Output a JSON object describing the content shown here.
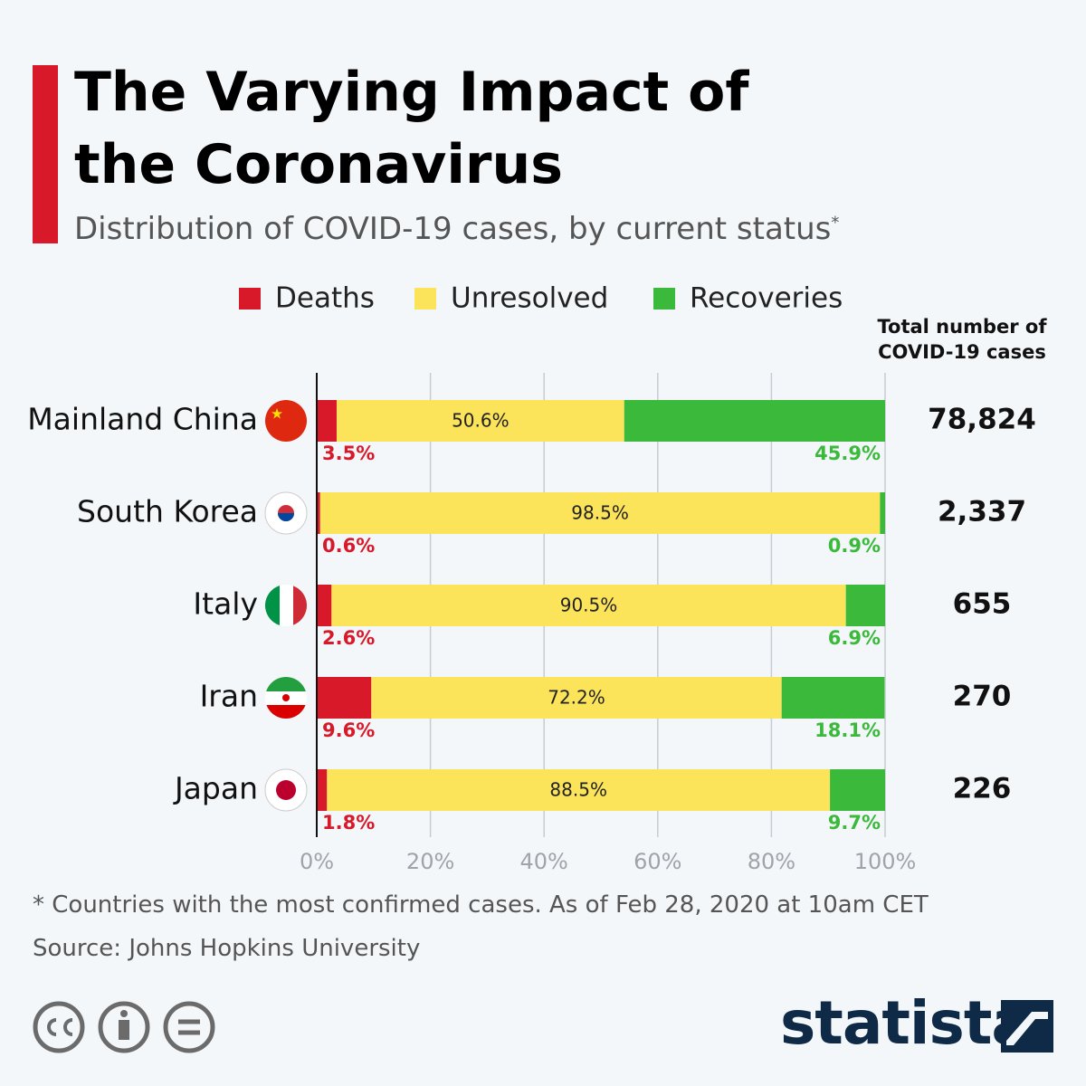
{
  "chart_data": {
    "type": "stacked_bar_horizontal",
    "title": "The Varying Impact of the Coronavirus",
    "subtitle": "Distribution of COVID-19 cases, by current status",
    "subtitle_mark": "*",
    "categories": [
      "Mainland China",
      "South Korea",
      "Italy",
      "Iran",
      "Japan"
    ],
    "series": [
      {
        "name": "Deaths",
        "color": "#d7192a",
        "values": [
          3.5,
          0.6,
          2.6,
          9.6,
          1.8
        ],
        "value_labels": [
          "3.5%",
          "0.6%",
          "2.6%",
          "9.6%",
          "1.8%"
        ]
      },
      {
        "name": "Unresolved",
        "color": "#fbe35a",
        "values": [
          50.6,
          98.5,
          90.5,
          72.2,
          88.5
        ],
        "value_labels": [
          "50.6%",
          "98.5%",
          "90.5%",
          "72.2%",
          "88.5%"
        ]
      },
      {
        "name": "Recoveries",
        "color": "#3bb93b",
        "values": [
          45.9,
          0.9,
          6.9,
          18.1,
          9.7
        ],
        "value_labels": [
          "45.9%",
          "0.9%",
          "6.9%",
          "18.1%",
          "9.7%"
        ]
      }
    ],
    "xlim": [
      0,
      100
    ],
    "xticks": [
      {
        "value": 0,
        "label": "0%"
      },
      {
        "value": 20,
        "label": "20%"
      },
      {
        "value": 40,
        "label": "40%"
      },
      {
        "value": 60,
        "label": "60%"
      },
      {
        "value": 80,
        "label": "80%"
      },
      {
        "value": 100,
        "label": "100%"
      }
    ],
    "grid": true,
    "totals": {
      "title": "Total number of COVID-19 cases",
      "values": [
        78824,
        2337,
        655,
        270,
        226
      ],
      "value_labels": [
        "78,824",
        "2,337",
        "655",
        "270",
        "226"
      ]
    },
    "footnote": "* Countries with the most confirmed cases. As of Feb 28, 2020 at 10am CET",
    "source": "Source: Johns Hopkins University",
    "brand": "statista"
  }
}
